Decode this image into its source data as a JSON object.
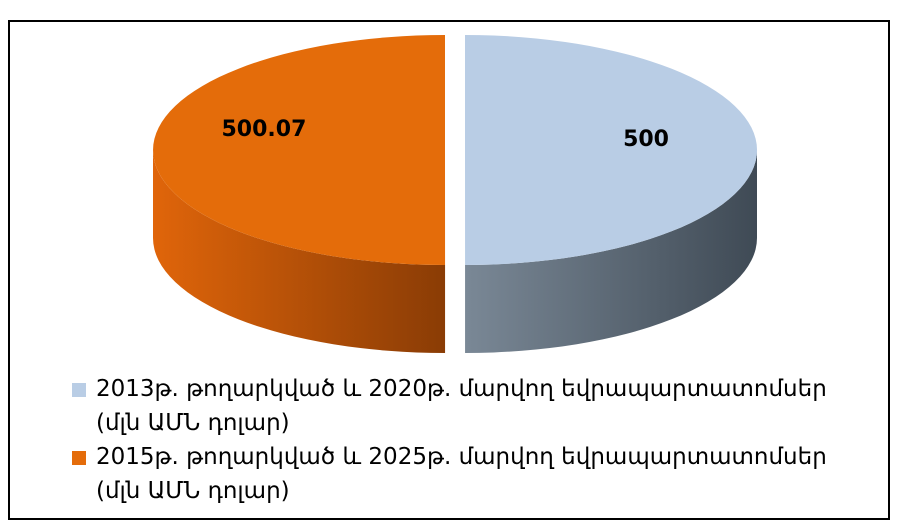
{
  "chart_data": {
    "type": "pie3d",
    "series": [
      {
        "name": "2013թ. թողարկված և 2020թ. մարվող եվրապարտատոմսեր (մլն ԱՄՆ դոլար)",
        "color": "#b9cde5",
        "values": [
          500
        ]
      },
      {
        "name": "2015թ. թողարկված և 2025թ. մարվող եվրապարտատոմսեր (մլն ԱՄՆ դոլար)",
        "color": "#e46c0a",
        "values": [
          500.07
        ]
      }
    ],
    "legend": "bottom-left"
  }
}
